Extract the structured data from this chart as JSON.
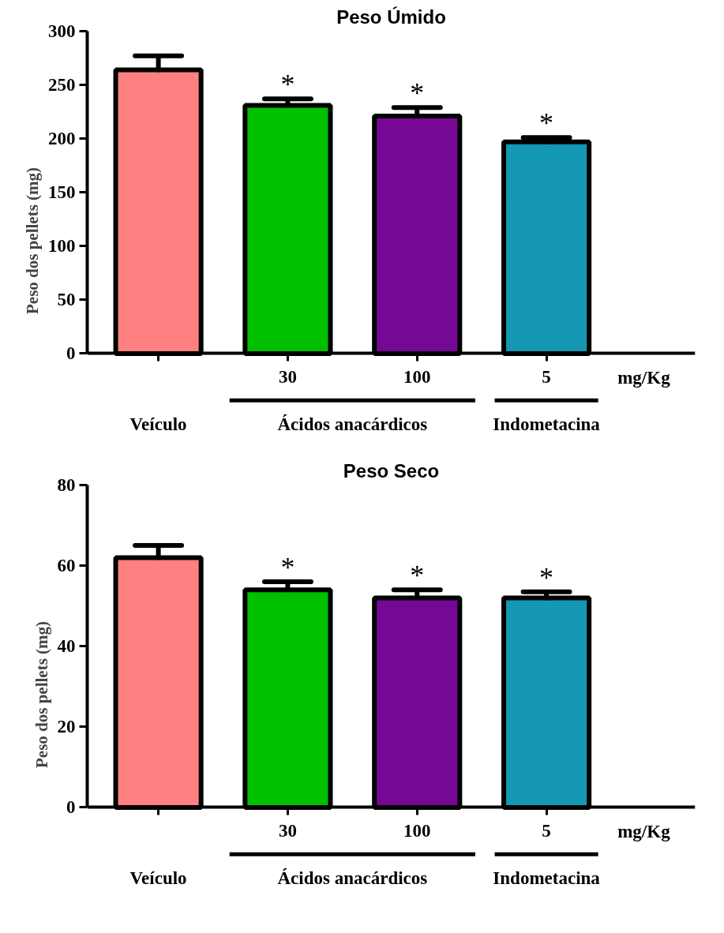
{
  "chart_data": [
    {
      "type": "bar",
      "title": "Peso Úmido",
      "ylabel": "Peso dos pellets (mg)",
      "categories": [
        null,
        "30",
        "100",
        "5"
      ],
      "values": [
        264,
        231,
        221,
        197
      ],
      "colors": [
        "#ff8080",
        "#00c000",
        "#760896",
        "#1498b4"
      ],
      "errors": [
        [
          264,
          277
        ],
        [
          231,
          237
        ],
        [
          221,
          229
        ],
        [
          197,
          201
        ]
      ],
      "ylim": [
        0,
        300
      ],
      "yticks": [
        0,
        50,
        100,
        150,
        200,
        250,
        300
      ],
      "grid": false,
      "annotations": [
        "mg/Kg",
        "Veículo",
        "Ácidos anacárdicos",
        "Indometacina",
        {
          "text": "*",
          "x": "30",
          "y": 237
        },
        {
          "text": "*",
          "x": "100",
          "y": 229
        },
        {
          "text": "*",
          "x": "5",
          "y": 201
        }
      ]
    },
    {
      "type": "bar",
      "title": "Peso Seco",
      "ylabel": "Peso dos pellets (mg)",
      "categories": [
        null,
        "30",
        "100",
        "5"
      ],
      "values": [
        62,
        54,
        52,
        52
      ],
      "colors": [
        "#ff8080",
        "#00c000",
        "#760896",
        "#1498b4"
      ],
      "errors": [
        [
          62,
          65
        ],
        [
          54,
          56
        ],
        [
          52,
          54
        ],
        [
          52,
          53.5
        ]
      ],
      "ylim": [
        0,
        80
      ],
      "yticks": [
        0,
        20,
        40,
        60,
        80
      ],
      "grid": false,
      "annotations": [
        "mg/Kg",
        "Veículo",
        "Ácidos anacárdicos",
        "Indometacina",
        {
          "text": "*",
          "x": "30",
          "y": 56
        },
        {
          "text": "*",
          "x": "100",
          "y": 54
        },
        {
          "text": "*",
          "x": "5",
          "y": 53.5
        }
      ]
    }
  ]
}
